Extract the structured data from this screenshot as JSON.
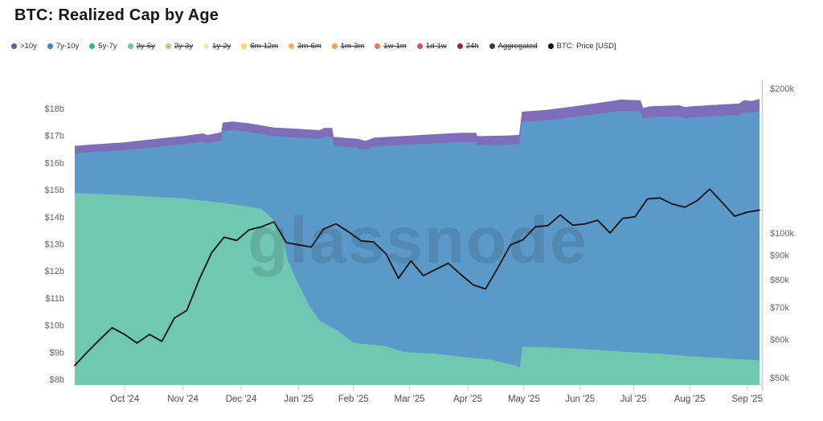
{
  "title": "BTC: Realized Cap by Age",
  "watermark": "glassnode",
  "legend": [
    {
      "label": ">10y",
      "color": "#6458a8",
      "struck": false
    },
    {
      "label": "7y-10y",
      "color": "#3d85c4",
      "struck": false
    },
    {
      "label": "5y-7y",
      "color": "#2fb3a4",
      "struck": false
    },
    {
      "label": "3y-5y",
      "color": "#74c69b",
      "struck": true
    },
    {
      "label": "2y-3y",
      "color": "#a5d97c",
      "struck": true
    },
    {
      "label": "1y-2y",
      "color": "#eef0a0",
      "struck": true
    },
    {
      "label": "6m-12m",
      "color": "#f9d865",
      "struck": true
    },
    {
      "label": "3m-6m",
      "color": "#f8b152",
      "struck": true
    },
    {
      "label": "1m-3m",
      "color": "#f79a4d",
      "struck": true
    },
    {
      "label": "1w-1m",
      "color": "#f07850",
      "struck": true
    },
    {
      "label": "1d-1w",
      "color": "#e14b56",
      "struck": true
    },
    {
      "label": "24h",
      "color": "#a11c4e",
      "struck": true
    },
    {
      "label": "Aggregated",
      "color": "#363c4f",
      "struck": true
    },
    {
      "label": "BTC: Price [USD]",
      "color": "#111111",
      "struck": false
    }
  ],
  "chart_data": {
    "type": "area",
    "subtype": "stacked-area-with-price-line",
    "title": "BTC: Realized Cap by Age",
    "watermark": "glassnode",
    "stack_unit": "USD billions (realized cap)",
    "price_unit": "USD thousands (BTC price), log scale",
    "x_range": "Sep 2024 - Sep 2025",
    "x_ticks": [
      {
        "label": "Oct '24",
        "f": 0.073
      },
      {
        "label": "Nov '24",
        "f": 0.158
      },
      {
        "label": "Dec '24",
        "f": 0.243
      },
      {
        "label": "Jan '25",
        "f": 0.327
      },
      {
        "label": "Feb '25",
        "f": 0.407
      },
      {
        "label": "Mar '25",
        "f": 0.489
      },
      {
        "label": "Apr '25",
        "f": 0.574
      },
      {
        "label": "May '25",
        "f": 0.656
      },
      {
        "label": "Jun '25",
        "f": 0.738
      },
      {
        "label": "Jul '25",
        "f": 0.816
      },
      {
        "label": "Aug '25",
        "f": 0.898
      },
      {
        "label": "Sep '25",
        "f": 0.982
      }
    ],
    "y_left": {
      "min": 8,
      "max": 18,
      "ticks": [
        {
          "label": "$8b",
          "v": 8
        },
        {
          "label": "$9b",
          "v": 9
        },
        {
          "label": "$10b",
          "v": 10
        },
        {
          "label": "$11b",
          "v": 11
        },
        {
          "label": "$12b",
          "v": 12
        },
        {
          "label": "$13b",
          "v": 13
        },
        {
          "label": "$14b",
          "v": 14
        },
        {
          "label": "$15b",
          "v": 15
        },
        {
          "label": "$16b",
          "v": 16
        },
        {
          "label": "$17b",
          "v": 17
        },
        {
          "label": "$18b",
          "v": 18
        }
      ]
    },
    "y_right": {
      "scale": "log",
      "ticks": [
        {
          "label": "$50k",
          "v": 50
        },
        {
          "label": "$60k",
          "v": 60
        },
        {
          "label": "$70k",
          "v": 70
        },
        {
          "label": "$80k",
          "v": 80
        },
        {
          "label": "$90k",
          "v": 90
        },
        {
          "label": "$100k",
          "v": 100
        },
        {
          "label": "$200k",
          "v": 200
        }
      ]
    },
    "areas": [
      {
        "name": "5y-7y",
        "color": "#70c7b2",
        "stack_top_b": [
          [
            0,
            14.88
          ],
          [
            0.073,
            14.8
          ],
          [
            0.158,
            14.68
          ],
          [
            0.214,
            14.52
          ],
          [
            0.243,
            14.42
          ],
          [
            0.272,
            14.3
          ],
          [
            0.29,
            13.9
          ],
          [
            0.304,
            13.2
          ],
          [
            0.311,
            12.4
          ],
          [
            0.325,
            11.6
          ],
          [
            0.343,
            10.7
          ],
          [
            0.358,
            10.15
          ],
          [
            0.381,
            9.85
          ],
          [
            0.407,
            9.35
          ],
          [
            0.431,
            9.28
          ],
          [
            0.454,
            9.22
          ],
          [
            0.481,
            9.0
          ],
          [
            0.525,
            8.95
          ],
          [
            0.568,
            8.82
          ],
          [
            0.607,
            8.72
          ],
          [
            0.642,
            8.52
          ],
          [
            0.65,
            8.45
          ],
          [
            0.654,
            9.2
          ],
          [
            0.689,
            9.18
          ],
          [
            0.738,
            9.12
          ],
          [
            0.812,
            9.0
          ],
          [
            0.853,
            8.95
          ],
          [
            0.898,
            8.85
          ],
          [
            0.947,
            8.78
          ],
          [
            0.982,
            8.72
          ],
          [
            1,
            8.7
          ]
        ]
      },
      {
        "name": "7y-10y",
        "color": "#5b99c9",
        "stack_top_b": [
          [
            0,
            16.35
          ],
          [
            0.032,
            16.4
          ],
          [
            0.073,
            16.46
          ],
          [
            0.126,
            16.6
          ],
          [
            0.158,
            16.68
          ],
          [
            0.187,
            16.77
          ],
          [
            0.194,
            16.72
          ],
          [
            0.214,
            16.81
          ],
          [
            0.216,
            17.16
          ],
          [
            0.231,
            17.2
          ],
          [
            0.255,
            17.13
          ],
          [
            0.29,
            16.98
          ],
          [
            0.325,
            16.93
          ],
          [
            0.358,
            16.88
          ],
          [
            0.364,
            16.95
          ],
          [
            0.376,
            16.95
          ],
          [
            0.378,
            16.62
          ],
          [
            0.413,
            16.55
          ],
          [
            0.425,
            16.47
          ],
          [
            0.437,
            16.59
          ],
          [
            0.478,
            16.65
          ],
          [
            0.525,
            16.71
          ],
          [
            0.566,
            16.76
          ],
          [
            0.586,
            16.76
          ],
          [
            0.588,
            16.64
          ],
          [
            0.63,
            16.66
          ],
          [
            0.649,
            16.68
          ],
          [
            0.653,
            17.5
          ],
          [
            0.689,
            17.56
          ],
          [
            0.736,
            17.7
          ],
          [
            0.785,
            17.87
          ],
          [
            0.797,
            17.92
          ],
          [
            0.826,
            17.89
          ],
          [
            0.83,
            17.62
          ],
          [
            0.841,
            17.68
          ],
          [
            0.883,
            17.71
          ],
          [
            0.891,
            17.64
          ],
          [
            0.902,
            17.67
          ],
          [
            0.947,
            17.73
          ],
          [
            0.97,
            17.75
          ],
          [
            0.977,
            17.86
          ],
          [
            0.989,
            17.84
          ],
          [
            1,
            17.9
          ]
        ]
      },
      {
        "name": ">10y",
        "color": "#7e6eba",
        "stack_top_b": [
          [
            0,
            16.62
          ],
          [
            0.032,
            16.68
          ],
          [
            0.073,
            16.75
          ],
          [
            0.126,
            16.9
          ],
          [
            0.158,
            16.98
          ],
          [
            0.187,
            17.08
          ],
          [
            0.194,
            17.02
          ],
          [
            0.214,
            17.12
          ],
          [
            0.216,
            17.48
          ],
          [
            0.231,
            17.52
          ],
          [
            0.255,
            17.45
          ],
          [
            0.29,
            17.3
          ],
          [
            0.325,
            17.25
          ],
          [
            0.358,
            17.2
          ],
          [
            0.364,
            17.28
          ],
          [
            0.376,
            17.28
          ],
          [
            0.378,
            16.95
          ],
          [
            0.413,
            16.88
          ],
          [
            0.425,
            16.8
          ],
          [
            0.437,
            16.92
          ],
          [
            0.478,
            16.98
          ],
          [
            0.525,
            17.05
          ],
          [
            0.566,
            17.1
          ],
          [
            0.586,
            17.1
          ],
          [
            0.588,
            16.98
          ],
          [
            0.63,
            17.0
          ],
          [
            0.649,
            17.02
          ],
          [
            0.653,
            17.88
          ],
          [
            0.689,
            17.95
          ],
          [
            0.736,
            18.1
          ],
          [
            0.785,
            18.28
          ],
          [
            0.797,
            18.33
          ],
          [
            0.826,
            18.3
          ],
          [
            0.83,
            18.02
          ],
          [
            0.841,
            18.08
          ],
          [
            0.883,
            18.12
          ],
          [
            0.891,
            18.05
          ],
          [
            0.902,
            18.08
          ],
          [
            0.947,
            18.15
          ],
          [
            0.97,
            18.18
          ],
          [
            0.977,
            18.3
          ],
          [
            0.989,
            18.28
          ],
          [
            1,
            18.35
          ]
        ]
      }
    ],
    "price_line": {
      "name": "BTC: Price [USD]",
      "color": "#111111",
      "values_k": [
        53.0,
        56.5,
        60.0,
        63.5,
        61.5,
        59.0,
        61.5,
        59.5,
        66.5,
        69.0,
        80.0,
        91.0,
        98.0,
        96.5,
        101.5,
        103.0,
        105.5,
        95.5,
        94.5,
        93.5,
        102.0,
        104.5,
        100.5,
        96.3,
        95.8,
        90.5,
        80.5,
        87.5,
        81.5,
        84.0,
        86.5,
        82.0,
        78.0,
        76.5,
        84.8,
        94.5,
        96.8,
        103.0,
        103.6,
        109.0,
        103.8,
        104.5,
        106.3,
        100.0,
        107.2,
        108.1,
        117.8,
        118.3,
        114.9,
        113.1,
        116.8,
        123.4,
        115.8,
        108.4,
        110.5,
        111.6
      ]
    }
  }
}
